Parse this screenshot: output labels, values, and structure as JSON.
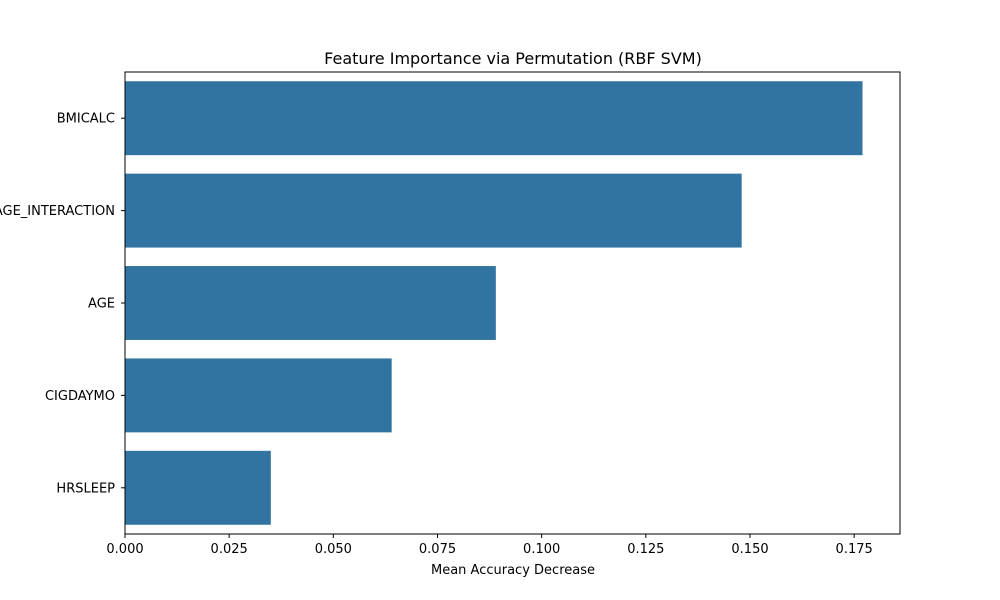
{
  "chart_data": {
    "type": "bar",
    "orientation": "horizontal",
    "title": "Feature Importance via Permutation (RBF SVM)",
    "xlabel": "Mean Accuracy Decrease",
    "ylabel": "",
    "categories": [
      "BMICALC",
      "BMI_AGE_INTERACTION",
      "AGE",
      "CIGDAYMO",
      "HRSLEEP"
    ],
    "values": [
      0.177,
      0.148,
      0.089,
      0.064,
      0.035
    ],
    "xlim": [
      0,
      0.186
    ],
    "xticks": [
      0.0,
      0.025,
      0.05,
      0.075,
      0.1,
      0.125,
      0.15,
      0.175
    ],
    "xtick_labels": [
      "0.000",
      "0.025",
      "0.050",
      "0.075",
      "0.100",
      "0.125",
      "0.150",
      "0.175"
    ],
    "grid": false,
    "legend": "none",
    "bar_color": "#3274a1"
  }
}
